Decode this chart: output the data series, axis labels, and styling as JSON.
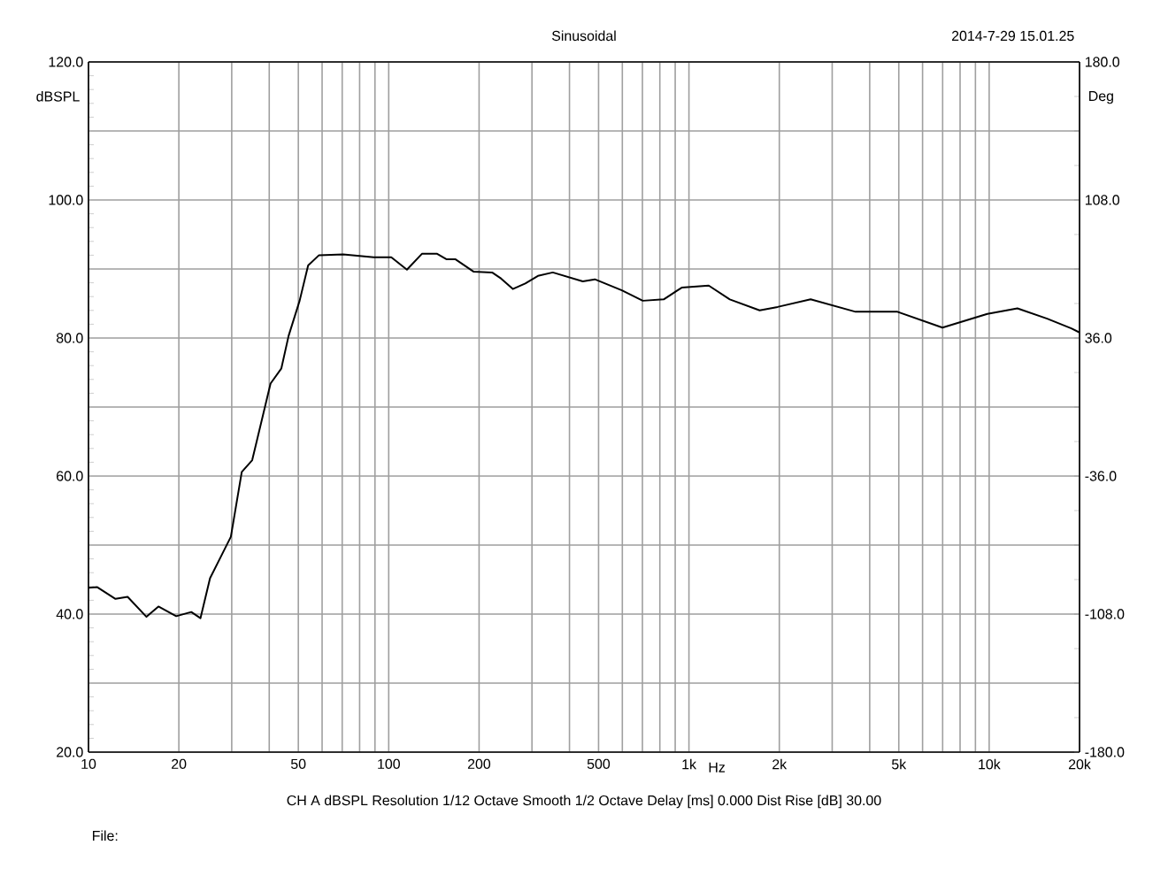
{
  "chart_data": {
    "type": "line",
    "title": "Sinusoidal",
    "xlabel": "Hz",
    "ylabel": "dBSPL",
    "y2label": "Deg",
    "annotations": [
      "2014-7-29 15.01.25",
      "CH A   dBSPL   Resolution 1/12 Octave   Smooth 1/2 Octave   Delay [ms] 0.000   Dist Rise [dB] 30.00",
      "File:"
    ],
    "log": "x",
    "grid": true,
    "marker": "none",
    "line_style": "solid",
    "xlim": [
      10,
      20000
    ],
    "ylim": [
      20,
      120
    ],
    "y2lim": [
      -180,
      180
    ],
    "xticks": [
      10,
      20,
      {
        "value": 30,
        "label": null
      },
      {
        "value": 40,
        "label": null
      },
      50,
      {
        "value": 60,
        "label": null
      },
      {
        "value": 70,
        "label": null
      },
      {
        "value": 80,
        "label": null
      },
      {
        "value": 90,
        "label": null
      },
      100,
      200,
      {
        "value": 300,
        "label": null
      },
      {
        "value": 400,
        "label": null
      },
      500,
      {
        "value": 600,
        "label": null
      },
      {
        "value": 700,
        "label": null
      },
      {
        "value": 800,
        "label": null
      },
      {
        "value": 900,
        "label": null
      },
      {
        "value": 1000,
        "label": "1k"
      },
      {
        "value": 2000,
        "label": "2k"
      },
      {
        "value": 3000,
        "label": null
      },
      {
        "value": 4000,
        "label": null
      },
      {
        "value": 5000,
        "label": "5k"
      },
      {
        "value": 6000,
        "label": null
      },
      {
        "value": 7000,
        "label": null
      },
      {
        "value": 8000,
        "label": null
      },
      {
        "value": 9000,
        "label": null
      },
      {
        "value": 10000,
        "label": "10k"
      },
      {
        "value": 20000,
        "label": "20k"
      }
    ],
    "yticks": [
      {
        "value": 20,
        "label": "20.0"
      },
      {
        "value": 30,
        "label": null
      },
      {
        "value": 40,
        "label": "40.0"
      },
      {
        "value": 50,
        "label": null
      },
      {
        "value": 60,
        "label": "60.0"
      },
      {
        "value": 70,
        "label": null
      },
      {
        "value": 80,
        "label": "80.0"
      },
      {
        "value": 90,
        "label": null
      },
      {
        "value": 100,
        "label": "100.0"
      },
      {
        "value": 110,
        "label": null
      },
      {
        "value": 120,
        "label": "120.0"
      }
    ],
    "y2ticks": [
      {
        "value": -180,
        "label": "-180.0"
      },
      {
        "value": -108,
        "label": "-108.0"
      },
      {
        "value": -36,
        "label": "-36.0"
      },
      {
        "value": 36,
        "label": "36.0"
      },
      {
        "value": 108,
        "label": "108.0"
      },
      {
        "value": 180,
        "label": "180.0"
      }
    ],
    "series": [
      {
        "color": "#000000",
        "x": [
          10,
          10.7,
          12.3,
          13.5,
          15.6,
          17.1,
          19.6,
          22.0,
          23.6,
          25.4,
          29.8,
          32.4,
          35.1,
          40.4,
          43.9,
          46.4,
          50.5,
          53.9,
          58.6,
          70.5,
          89.1,
          102,
          115,
          129,
          145,
          156,
          167,
          192,
          221,
          237,
          259,
          285,
          314,
          352,
          443,
          486,
          598,
          702,
          824,
          946,
          1164,
          1368,
          1720,
          1974,
          2543,
          3590,
          4950,
          6990,
          9860,
          12420,
          15600,
          18780,
          20000
        ],
        "values": [
          43.8,
          43.9,
          42.2,
          42.5,
          39.6,
          41.1,
          39.7,
          40.3,
          39.4,
          45.2,
          51.2,
          60.6,
          62.3,
          73.4,
          75.6,
          80.3,
          85.4,
          90.5,
          92.0,
          92.1,
          91.7,
          91.7,
          89.9,
          92.2,
          92.2,
          91.4,
          91.4,
          89.6,
          89.5,
          88.6,
          87.1,
          87.9,
          89.0,
          89.5,
          88.2,
          88.5,
          86.9,
          85.4,
          85.6,
          87.3,
          87.6,
          85.6,
          84.0,
          84.5,
          85.6,
          83.8,
          83.8,
          81.5,
          83.5,
          84.3,
          82.8,
          81.4,
          80.8
        ]
      }
    ]
  }
}
